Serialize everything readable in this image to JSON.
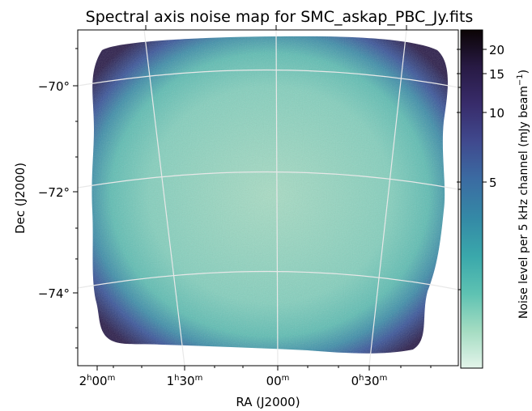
{
  "chart_data": {
    "type": "heatmap",
    "title": "Spectral axis noise map for SMC_askap_PBC_Jy.fits",
    "xlabel": "RA (J2000)",
    "ylabel": "Dec (J2000)",
    "x_ticks": [
      {
        "h": "2",
        "hu": "h",
        "m": "00",
        "mu": "m"
      },
      {
        "h": "1",
        "hu": "h",
        "m": "30",
        "mu": "m"
      },
      {
        "h": "",
        "hu": "",
        "m": "00",
        "mu": "m"
      },
      {
        "h": "0",
        "hu": "h",
        "m": "30",
        "mu": "m"
      }
    ],
    "y_ticks": [
      "−70°",
      "−72°",
      "−74°"
    ],
    "colorbar": {
      "label_prefix": "Noise level per 5 kHz channel (mJy beam",
      "label_exp": "−1",
      "label_suffix": ")",
      "ticks": [
        "5",
        "10",
        "15",
        "20"
      ],
      "scale": "nonlinear (stretched)",
      "colormap": [
        "#e3f4ea",
        "#a4dcc2",
        "#5ec2b2",
        "#3aa8ab",
        "#348aa6",
        "#3b6ba2",
        "#40498e",
        "#382c6b",
        "#281a44",
        "#0b0405"
      ]
    },
    "map_center_color": "#9ed8be",
    "map_edge_color": "#2b1d4a",
    "grid": true
  }
}
